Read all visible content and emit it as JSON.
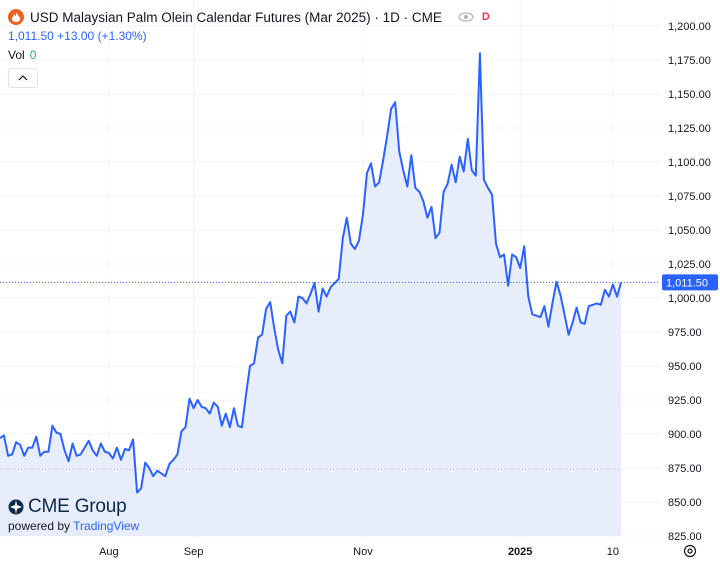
{
  "header": {
    "title": "USD Malaysian Palm Olein Calendar Futures (Mar 2025) · 1D · CME",
    "badge": "D",
    "price": "1,011.50",
    "change": "+13.00",
    "change_pct": "(+1.30%)",
    "vol_label": "Vol",
    "vol_value": "0"
  },
  "footer": {
    "brand": "CME Group",
    "powered_by": "powered by",
    "platform": "TradingView"
  },
  "icons": {
    "logo": "flame-icon",
    "visibility": "eye-off-icon",
    "collapse": "chevron-up-icon",
    "settings": "gear-icon"
  },
  "colors": {
    "line": "#2962ff",
    "area": "#e8edfc",
    "last_price_tag": "#2962ff",
    "logo": "#f2601f",
    "badge": "#f23645"
  },
  "chart_data": {
    "type": "area",
    "title": "USD Malaysian Palm Olein Calendar Futures (Mar 2025) · 1D · CME",
    "xlabel": "",
    "ylabel": "",
    "ylim": [
      825,
      1200
    ],
    "grid": true,
    "y_ticks": [
      "1,200.00",
      "1,175.00",
      "1,150.00",
      "1,125.00",
      "1,100.00",
      "1,075.00",
      "1,050.00",
      "1,025.00",
      "1,000.00",
      "975.00",
      "950.00",
      "925.00",
      "900.00",
      "875.00",
      "850.00",
      "825.00"
    ],
    "x_ticks": [
      {
        "label": "Aug",
        "index": 27
      },
      {
        "label": "Sep",
        "index": 48
      },
      {
        "label": "Nov",
        "index": 90
      },
      {
        "label": "2025",
        "index": 129
      },
      {
        "label": "10",
        "index": 152
      }
    ],
    "last_price": 1011.5,
    "last_price_label": "1,011.50",
    "reference_level": 874,
    "series": [
      {
        "values": [
          897,
          899,
          884,
          885,
          894,
          892,
          884,
          890,
          890,
          898,
          884,
          887,
          887,
          906,
          901,
          900,
          888,
          880,
          893,
          884,
          885,
          890,
          895,
          888,
          884,
          893,
          887,
          886,
          882,
          890,
          881,
          889,
          888,
          896,
          857,
          860,
          879,
          875,
          869,
          873,
          871,
          869,
          878,
          881,
          885,
          902,
          905,
          926,
          919,
          925,
          920,
          919,
          915,
          923,
          920,
          906,
          915,
          905,
          919,
          906,
          905,
          929,
          950,
          952,
          971,
          973,
          992,
          997,
          978,
          962,
          952,
          987,
          990,
          982,
          1001,
          1000,
          996,
          1003,
          1011,
          990,
          1007,
          1001,
          1008,
          1011,
          1014,
          1044,
          1059,
          1040,
          1036,
          1042,
          1061,
          1092,
          1099,
          1082,
          1085,
          1101,
          1119,
          1139,
          1144,
          1108,
          1094,
          1082,
          1105,
          1081,
          1078,
          1071,
          1059,
          1067,
          1044,
          1048,
          1078,
          1084,
          1098,
          1085,
          1104,
          1093,
          1117,
          1094,
          1090,
          1180,
          1087,
          1081,
          1076,
          1040,
          1030,
          1032,
          1009,
          1032,
          1030,
          1022,
          1038,
          1001,
          988,
          987,
          986,
          994,
          979,
          996,
          1012,
          1002,
          988,
          973,
          982,
          993,
          982,
          981,
          994,
          995,
          996,
          995,
          1006,
          1001,
          1010,
          1001,
          1011.5
        ]
      }
    ]
  }
}
